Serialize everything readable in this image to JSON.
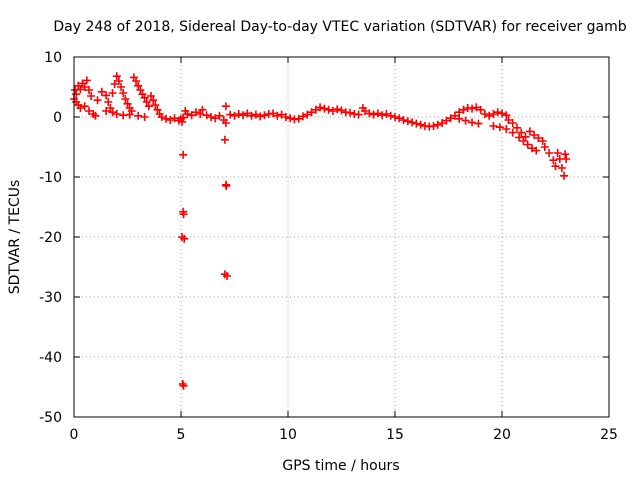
{
  "chart_data": {
    "type": "scatter",
    "title": "Day 248 of 2018, Sidereal Day-to-day VTEC variation (SDTVAR) for receiver gamb",
    "xlabel": "GPS time / hours",
    "ylabel": "SDTVAR / TECUs",
    "xlim": [
      0,
      25
    ],
    "ylim": [
      -50,
      10
    ],
    "xticks": [
      0,
      5,
      10,
      15,
      20,
      25
    ],
    "yticks": [
      10,
      0,
      -10,
      -20,
      -30,
      -40,
      -50
    ],
    "grid": true,
    "marker": "+",
    "color": "#ff0000",
    "series": [
      {
        "name": "SDTVAR",
        "points": [
          [
            0.0,
            3.0
          ],
          [
            0.05,
            4.5
          ],
          [
            0.1,
            3.8
          ],
          [
            0.2,
            5.2
          ],
          [
            0.3,
            4.6
          ],
          [
            0.4,
            5.6
          ],
          [
            0.5,
            5.0
          ],
          [
            0.6,
            6.1
          ],
          [
            0.7,
            4.5
          ],
          [
            0.8,
            3.5
          ],
          [
            0.1,
            2.5
          ],
          [
            0.2,
            2.0
          ],
          [
            0.3,
            1.5
          ],
          [
            0.5,
            1.8
          ],
          [
            0.7,
            1.0
          ],
          [
            0.9,
            0.5
          ],
          [
            1.0,
            0.2
          ],
          [
            1.1,
            2.8
          ],
          [
            1.3,
            4.2
          ],
          [
            1.5,
            3.6
          ],
          [
            1.6,
            2.5
          ],
          [
            1.7,
            1.5
          ],
          [
            1.8,
            4.0
          ],
          [
            1.9,
            5.5
          ],
          [
            2.0,
            6.8
          ],
          [
            2.1,
            6.0
          ],
          [
            2.2,
            5.0
          ],
          [
            2.3,
            4.0
          ],
          [
            2.4,
            3.0
          ],
          [
            2.5,
            2.2
          ],
          [
            2.6,
            1.5
          ],
          [
            2.7,
            1.0
          ],
          [
            2.8,
            6.6
          ],
          [
            2.9,
            6.0
          ],
          [
            3.0,
            5.2
          ],
          [
            3.1,
            4.5
          ],
          [
            3.2,
            3.8
          ],
          [
            3.3,
            3.2
          ],
          [
            3.4,
            2.5
          ],
          [
            3.5,
            1.8
          ],
          [
            1.5,
            1.0
          ],
          [
            1.8,
            0.8
          ],
          [
            2.0,
            0.5
          ],
          [
            2.3,
            0.3
          ],
          [
            2.6,
            0.4
          ],
          [
            3.0,
            0.2
          ],
          [
            3.3,
            0.0
          ],
          [
            3.6,
            3.5
          ],
          [
            3.7,
            2.8
          ],
          [
            3.8,
            2.0
          ],
          [
            3.9,
            1.2
          ],
          [
            4.0,
            0.5
          ],
          [
            4.1,
            0.0
          ],
          [
            4.3,
            -0.3
          ],
          [
            4.5,
            -0.5
          ],
          [
            4.7,
            -0.2
          ],
          [
            4.9,
            -0.6
          ],
          [
            5.0,
            -0.3
          ],
          [
            5.05,
            -0.8
          ],
          [
            5.1,
            -0.1
          ],
          [
            5.1,
            -6.3
          ],
          [
            5.1,
            -15.8
          ],
          [
            5.12,
            -16.2
          ],
          [
            5.05,
            -20.0
          ],
          [
            5.15,
            -20.3
          ],
          [
            5.08,
            -44.5
          ],
          [
            5.12,
            -44.8
          ],
          [
            5.2,
            1.0
          ],
          [
            5.3,
            0.5
          ],
          [
            5.5,
            0.3
          ],
          [
            5.7,
            0.8
          ],
          [
            5.9,
            0.5
          ],
          [
            6.0,
            1.2
          ],
          [
            6.2,
            0.3
          ],
          [
            6.4,
            0.0
          ],
          [
            6.6,
            -0.2
          ],
          [
            6.8,
            0.2
          ],
          [
            7.0,
            -0.5
          ],
          [
            7.1,
            -1.0
          ],
          [
            7.05,
            -3.8
          ],
          [
            7.1,
            -11.3
          ],
          [
            7.12,
            -11.5
          ],
          [
            7.05,
            -26.2
          ],
          [
            7.15,
            -26.5
          ],
          [
            7.1,
            1.8
          ],
          [
            7.3,
            0.4
          ],
          [
            7.5,
            0.2
          ],
          [
            7.7,
            0.5
          ],
          [
            7.9,
            0.3
          ],
          [
            8.1,
            0.6
          ],
          [
            8.3,
            0.2
          ],
          [
            8.5,
            0.4
          ],
          [
            8.7,
            0.1
          ],
          [
            8.9,
            0.3
          ],
          [
            9.1,
            0.5
          ],
          [
            9.3,
            0.6
          ],
          [
            9.5,
            0.2
          ],
          [
            9.7,
            0.4
          ],
          [
            9.9,
            0.0
          ],
          [
            10.1,
            -0.2
          ],
          [
            10.3,
            -0.4
          ],
          [
            10.5,
            -0.3
          ],
          [
            10.7,
            0.1
          ],
          [
            10.9,
            0.4
          ],
          [
            11.1,
            0.8
          ],
          [
            11.3,
            1.2
          ],
          [
            11.5,
            1.6
          ],
          [
            11.7,
            1.4
          ],
          [
            11.9,
            1.2
          ],
          [
            12.1,
            1.0
          ],
          [
            12.3,
            1.3
          ],
          [
            12.5,
            1.1
          ],
          [
            12.7,
            0.8
          ],
          [
            12.9,
            0.7
          ],
          [
            13.1,
            0.5
          ],
          [
            13.3,
            0.4
          ],
          [
            13.5,
            1.5
          ],
          [
            13.6,
            1.0
          ],
          [
            13.8,
            0.6
          ],
          [
            14.0,
            0.4
          ],
          [
            14.2,
            0.6
          ],
          [
            14.4,
            0.3
          ],
          [
            14.6,
            0.5
          ],
          [
            14.8,
            0.2
          ],
          [
            15.0,
            0.0
          ],
          [
            15.2,
            -0.2
          ],
          [
            15.4,
            -0.5
          ],
          [
            15.6,
            -0.7
          ],
          [
            15.8,
            -0.9
          ],
          [
            16.0,
            -1.1
          ],
          [
            16.2,
            -1.3
          ],
          [
            16.4,
            -1.5
          ],
          [
            16.6,
            -1.6
          ],
          [
            16.8,
            -1.5
          ],
          [
            17.0,
            -1.3
          ],
          [
            17.2,
            -1.0
          ],
          [
            17.4,
            -0.6
          ],
          [
            17.6,
            -0.2
          ],
          [
            17.8,
            0.2
          ],
          [
            18.0,
            0.8
          ],
          [
            18.2,
            1.2
          ],
          [
            18.4,
            1.5
          ],
          [
            18.6,
            1.4
          ],
          [
            18.8,
            1.6
          ],
          [
            19.0,
            1.2
          ],
          [
            18.0,
            -0.3
          ],
          [
            18.3,
            -0.6
          ],
          [
            18.6,
            -0.9
          ],
          [
            18.9,
            -1.1
          ],
          [
            19.2,
            0.5
          ],
          [
            19.4,
            0.2
          ],
          [
            19.6,
            0.5
          ],
          [
            19.8,
            0.8
          ],
          [
            20.0,
            0.6
          ],
          [
            20.2,
            0.3
          ],
          [
            20.3,
            -0.5
          ],
          [
            20.5,
            -1.0
          ],
          [
            20.7,
            -1.8
          ],
          [
            20.9,
            -2.6
          ],
          [
            21.1,
            -3.3
          ],
          [
            19.6,
            -1.5
          ],
          [
            19.9,
            -1.7
          ],
          [
            20.2,
            -2.0
          ],
          [
            20.5,
            -2.6
          ],
          [
            20.8,
            -3.4
          ],
          [
            21.0,
            -4.0
          ],
          [
            21.2,
            -4.6
          ],
          [
            21.4,
            -5.2
          ],
          [
            21.6,
            -5.6
          ],
          [
            21.3,
            -2.4
          ],
          [
            21.5,
            -3.0
          ],
          [
            21.7,
            -3.5
          ],
          [
            21.9,
            -4.0
          ],
          [
            22.0,
            -5.0
          ],
          [
            22.2,
            -6.0
          ],
          [
            22.4,
            -7.2
          ],
          [
            22.5,
            -8.2
          ],
          [
            22.6,
            -6.0
          ],
          [
            22.7,
            -7.0
          ],
          [
            22.8,
            -8.5
          ],
          [
            22.9,
            -9.8
          ],
          [
            22.95,
            -6.2
          ],
          [
            23.0,
            -7.0
          ]
        ]
      }
    ]
  }
}
